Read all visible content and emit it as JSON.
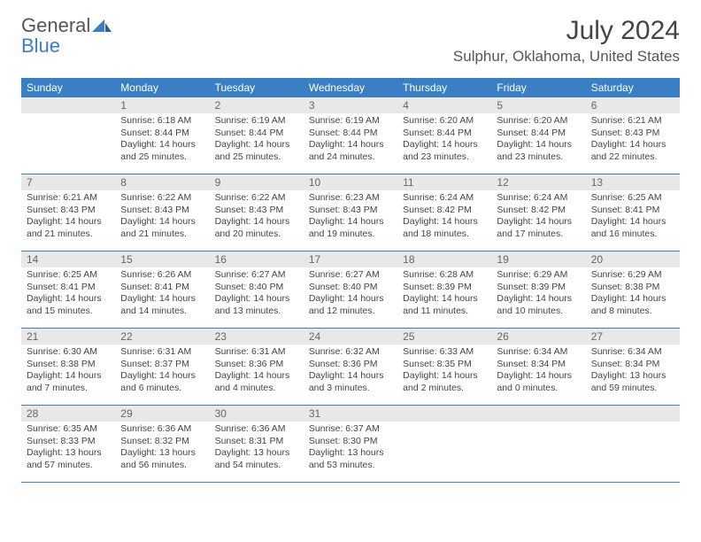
{
  "logo": {
    "text1": "General",
    "text2": "Blue"
  },
  "title": "July 2024",
  "location": "Sulphur, Oklahoma, United States",
  "day_labels": [
    "Sunday",
    "Monday",
    "Tuesday",
    "Wednesday",
    "Thursday",
    "Friday",
    "Saturday"
  ],
  "colors": {
    "header_bg": "#3a7fc4",
    "header_text": "#ffffff",
    "daynum_bg": "#e8e8e8",
    "cell_text": "#444",
    "border": "#3a7fc4"
  },
  "weeks": [
    [
      {
        "num": "",
        "sunrise": "",
        "sunset": "",
        "daylight": ""
      },
      {
        "num": "1",
        "sunrise": "Sunrise: 6:18 AM",
        "sunset": "Sunset: 8:44 PM",
        "daylight": "Daylight: 14 hours and 25 minutes."
      },
      {
        "num": "2",
        "sunrise": "Sunrise: 6:19 AM",
        "sunset": "Sunset: 8:44 PM",
        "daylight": "Daylight: 14 hours and 25 minutes."
      },
      {
        "num": "3",
        "sunrise": "Sunrise: 6:19 AM",
        "sunset": "Sunset: 8:44 PM",
        "daylight": "Daylight: 14 hours and 24 minutes."
      },
      {
        "num": "4",
        "sunrise": "Sunrise: 6:20 AM",
        "sunset": "Sunset: 8:44 PM",
        "daylight": "Daylight: 14 hours and 23 minutes."
      },
      {
        "num": "5",
        "sunrise": "Sunrise: 6:20 AM",
        "sunset": "Sunset: 8:44 PM",
        "daylight": "Daylight: 14 hours and 23 minutes."
      },
      {
        "num": "6",
        "sunrise": "Sunrise: 6:21 AM",
        "sunset": "Sunset: 8:43 PM",
        "daylight": "Daylight: 14 hours and 22 minutes."
      }
    ],
    [
      {
        "num": "7",
        "sunrise": "Sunrise: 6:21 AM",
        "sunset": "Sunset: 8:43 PM",
        "daylight": "Daylight: 14 hours and 21 minutes."
      },
      {
        "num": "8",
        "sunrise": "Sunrise: 6:22 AM",
        "sunset": "Sunset: 8:43 PM",
        "daylight": "Daylight: 14 hours and 21 minutes."
      },
      {
        "num": "9",
        "sunrise": "Sunrise: 6:22 AM",
        "sunset": "Sunset: 8:43 PM",
        "daylight": "Daylight: 14 hours and 20 minutes."
      },
      {
        "num": "10",
        "sunrise": "Sunrise: 6:23 AM",
        "sunset": "Sunset: 8:43 PM",
        "daylight": "Daylight: 14 hours and 19 minutes."
      },
      {
        "num": "11",
        "sunrise": "Sunrise: 6:24 AM",
        "sunset": "Sunset: 8:42 PM",
        "daylight": "Daylight: 14 hours and 18 minutes."
      },
      {
        "num": "12",
        "sunrise": "Sunrise: 6:24 AM",
        "sunset": "Sunset: 8:42 PM",
        "daylight": "Daylight: 14 hours and 17 minutes."
      },
      {
        "num": "13",
        "sunrise": "Sunrise: 6:25 AM",
        "sunset": "Sunset: 8:41 PM",
        "daylight": "Daylight: 14 hours and 16 minutes."
      }
    ],
    [
      {
        "num": "14",
        "sunrise": "Sunrise: 6:25 AM",
        "sunset": "Sunset: 8:41 PM",
        "daylight": "Daylight: 14 hours and 15 minutes."
      },
      {
        "num": "15",
        "sunrise": "Sunrise: 6:26 AM",
        "sunset": "Sunset: 8:41 PM",
        "daylight": "Daylight: 14 hours and 14 minutes."
      },
      {
        "num": "16",
        "sunrise": "Sunrise: 6:27 AM",
        "sunset": "Sunset: 8:40 PM",
        "daylight": "Daylight: 14 hours and 13 minutes."
      },
      {
        "num": "17",
        "sunrise": "Sunrise: 6:27 AM",
        "sunset": "Sunset: 8:40 PM",
        "daylight": "Daylight: 14 hours and 12 minutes."
      },
      {
        "num": "18",
        "sunrise": "Sunrise: 6:28 AM",
        "sunset": "Sunset: 8:39 PM",
        "daylight": "Daylight: 14 hours and 11 minutes."
      },
      {
        "num": "19",
        "sunrise": "Sunrise: 6:29 AM",
        "sunset": "Sunset: 8:39 PM",
        "daylight": "Daylight: 14 hours and 10 minutes."
      },
      {
        "num": "20",
        "sunrise": "Sunrise: 6:29 AM",
        "sunset": "Sunset: 8:38 PM",
        "daylight": "Daylight: 14 hours and 8 minutes."
      }
    ],
    [
      {
        "num": "21",
        "sunrise": "Sunrise: 6:30 AM",
        "sunset": "Sunset: 8:38 PM",
        "daylight": "Daylight: 14 hours and 7 minutes."
      },
      {
        "num": "22",
        "sunrise": "Sunrise: 6:31 AM",
        "sunset": "Sunset: 8:37 PM",
        "daylight": "Daylight: 14 hours and 6 minutes."
      },
      {
        "num": "23",
        "sunrise": "Sunrise: 6:31 AM",
        "sunset": "Sunset: 8:36 PM",
        "daylight": "Daylight: 14 hours and 4 minutes."
      },
      {
        "num": "24",
        "sunrise": "Sunrise: 6:32 AM",
        "sunset": "Sunset: 8:36 PM",
        "daylight": "Daylight: 14 hours and 3 minutes."
      },
      {
        "num": "25",
        "sunrise": "Sunrise: 6:33 AM",
        "sunset": "Sunset: 8:35 PM",
        "daylight": "Daylight: 14 hours and 2 minutes."
      },
      {
        "num": "26",
        "sunrise": "Sunrise: 6:34 AM",
        "sunset": "Sunset: 8:34 PM",
        "daylight": "Daylight: 14 hours and 0 minutes."
      },
      {
        "num": "27",
        "sunrise": "Sunrise: 6:34 AM",
        "sunset": "Sunset: 8:34 PM",
        "daylight": "Daylight: 13 hours and 59 minutes."
      }
    ],
    [
      {
        "num": "28",
        "sunrise": "Sunrise: 6:35 AM",
        "sunset": "Sunset: 8:33 PM",
        "daylight": "Daylight: 13 hours and 57 minutes."
      },
      {
        "num": "29",
        "sunrise": "Sunrise: 6:36 AM",
        "sunset": "Sunset: 8:32 PM",
        "daylight": "Daylight: 13 hours and 56 minutes."
      },
      {
        "num": "30",
        "sunrise": "Sunrise: 6:36 AM",
        "sunset": "Sunset: 8:31 PM",
        "daylight": "Daylight: 13 hours and 54 minutes."
      },
      {
        "num": "31",
        "sunrise": "Sunrise: 6:37 AM",
        "sunset": "Sunset: 8:30 PM",
        "daylight": "Daylight: 13 hours and 53 minutes."
      },
      {
        "num": "",
        "sunrise": "",
        "sunset": "",
        "daylight": ""
      },
      {
        "num": "",
        "sunrise": "",
        "sunset": "",
        "daylight": ""
      },
      {
        "num": "",
        "sunrise": "",
        "sunset": "",
        "daylight": ""
      }
    ]
  ]
}
